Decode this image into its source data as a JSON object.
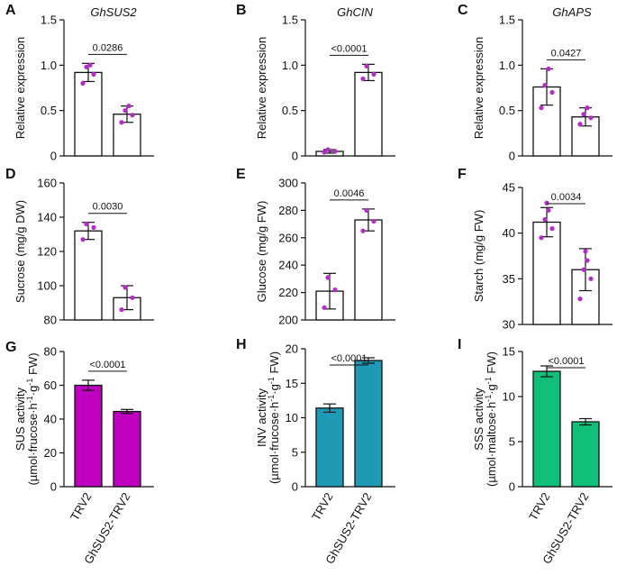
{
  "chart_data": [
    {
      "id": "A",
      "type": "bar",
      "title": "GhSUS2",
      "ylabel": "Relative expression",
      "ylim": [
        0,
        1.5
      ],
      "yticks": [
        0,
        0.5,
        1.0,
        1.5
      ],
      "ytick_labels": [
        "0",
        "0.5",
        "1.0",
        "1.5"
      ],
      "categories": [
        "TRV2",
        "GhSUS2-TRV2"
      ],
      "values": [
        0.92,
        0.46
      ],
      "errors": [
        0.1,
        0.09
      ],
      "points": [
        [
          0.8,
          0.9,
          0.98,
          1.0
        ],
        [
          0.37,
          0.45,
          0.5,
          0.55
        ]
      ],
      "pvalue": "0.0286",
      "bar_color": "#ffffff"
    },
    {
      "id": "B",
      "type": "bar",
      "title": "GhCIN",
      "ylabel": "Relative expression",
      "ylim": [
        0,
        1.5
      ],
      "yticks": [
        0,
        0.5,
        1.0,
        1.5
      ],
      "ytick_labels": [
        "0",
        "0.5",
        "1.0",
        "1.5"
      ],
      "categories": [
        "TRV2",
        "GhSUS2-TRV2"
      ],
      "values": [
        0.05,
        0.92
      ],
      "errors": [
        0.02,
        0.09
      ],
      "points": [
        [
          0.04,
          0.05,
          0.07
        ],
        [
          0.85,
          0.9,
          0.99
        ]
      ],
      "pvalue": "<0.0001",
      "bar_color": "#ffffff"
    },
    {
      "id": "C",
      "type": "bar",
      "title": "GhAPS",
      "ylabel": "Relative expression",
      "ylim": [
        0,
        1.5
      ],
      "yticks": [
        0,
        0.5,
        1.0,
        1.5
      ],
      "ytick_labels": [
        "0",
        "0.5",
        "1.0",
        "1.5"
      ],
      "categories": [
        "TRV2",
        "GhSUS2-TRV2"
      ],
      "values": [
        0.76,
        0.43
      ],
      "errors": [
        0.2,
        0.1
      ],
      "points": [
        [
          0.53,
          0.7,
          0.78,
          0.96
        ],
        [
          0.35,
          0.42,
          0.46,
          0.53
        ]
      ],
      "pvalue": "0.0427",
      "bar_color": "#ffffff"
    },
    {
      "id": "D",
      "type": "bar",
      "title": "",
      "ylabel": "Sucrose  (mg/g DW)",
      "ylim": [
        80,
        160
      ],
      "yticks": [
        80,
        100,
        120,
        140,
        160
      ],
      "ytick_labels": [
        "80",
        "100",
        "120",
        "140",
        "160"
      ],
      "categories": [
        "TRV2",
        "GhSUS2-TRV2"
      ],
      "values": [
        132,
        93
      ],
      "errors": [
        5,
        7
      ],
      "points": [
        [
          127,
          134,
          136
        ],
        [
          86,
          93,
          99
        ]
      ],
      "pvalue": "0.0030",
      "bar_color": "#ffffff"
    },
    {
      "id": "E",
      "type": "bar",
      "title": "",
      "ylabel": "Glucose  (mg/g FW)",
      "ylim": [
        200,
        300
      ],
      "yticks": [
        200,
        220,
        240,
        260,
        280,
        300
      ],
      "ytick_labels": [
        "200",
        "220",
        "240",
        "260",
        "280",
        "300"
      ],
      "categories": [
        "TRV2",
        "GhSUS2-TRV2"
      ],
      "values": [
        221,
        273
      ],
      "errors": [
        13,
        8
      ],
      "points": [
        [
          209,
          222,
          231
        ],
        [
          265,
          272,
          280
        ]
      ],
      "pvalue": "0.0046",
      "bar_color": "#ffffff"
    },
    {
      "id": "F",
      "type": "bar",
      "title": "",
      "ylabel": "Starch  (mg/g FW)",
      "ylim": [
        30,
        45
      ],
      "yticks": [
        30,
        35,
        40,
        45
      ],
      "ytick_labels": [
        "30",
        "35",
        "40",
        "45"
      ],
      "categories": [
        "TRV2",
        "GhSUS2-TRV2"
      ],
      "values": [
        41.2,
        36.0
      ],
      "errors": [
        1.6,
        2.3
      ],
      "points": [
        [
          39.5,
          40.5,
          41.5,
          42.5,
          43.3
        ],
        [
          32.8,
          35.0,
          36.0,
          37.0,
          38.0
        ]
      ],
      "pvalue": "0.0034",
      "bar_color": "#ffffff"
    },
    {
      "id": "G",
      "type": "bar",
      "title": "",
      "ylabel_line1": "SUS activity",
      "ylabel_line2": "(µmol·frucose·h",
      "ylabel_line2_end": " FW)",
      "ylim": [
        0,
        80
      ],
      "yticks": [
        0,
        20,
        40,
        60,
        80
      ],
      "ytick_labels": [
        "0",
        "20",
        "40",
        "60",
        "80"
      ],
      "categories": [
        "TRV2",
        "GhSUS2-TRV2"
      ],
      "values": [
        60,
        44.5
      ],
      "errors": [
        3,
        1.2
      ],
      "points": [],
      "pvalue": "<0.0001",
      "bar_color": "#c000c0"
    },
    {
      "id": "H",
      "type": "bar",
      "title": "",
      "ylabel_line1": "INV activity",
      "ylabel_line2": "(µmol·frucose·h",
      "ylabel_line2_end": " FW)",
      "ylim": [
        0,
        20
      ],
      "yticks": [
        0,
        5,
        10,
        15,
        20
      ],
      "ytick_labels": [
        "0",
        "5",
        "10",
        "15",
        "20"
      ],
      "categories": [
        "TRV2",
        "GhSUS2-TRV2"
      ],
      "values": [
        11.4,
        18.3
      ],
      "errors": [
        0.6,
        0.4
      ],
      "points": [],
      "pvalue": "<0.0001",
      "bar_color": "#1e9ab5"
    },
    {
      "id": "I",
      "type": "bar",
      "title": "",
      "ylabel_line1": "SSS activity",
      "ylabel_line2": "(µmol·maltose·h",
      "ylabel_line2_end": " FW)",
      "ylim": [
        0,
        15
      ],
      "yticks": [
        0,
        5,
        10,
        15
      ],
      "ytick_labels": [
        "0",
        "5",
        "10",
        "15"
      ],
      "categories": [
        "TRV2",
        "GhSUS2-TRV2"
      ],
      "values": [
        12.8,
        7.2
      ],
      "errors": [
        0.6,
        0.35
      ],
      "points": [],
      "pvalue": "<0.0001",
      "bar_color": "#10c07a"
    }
  ],
  "superscripts": {
    "minus_one": "-1"
  },
  "point_color": "#b829c9"
}
